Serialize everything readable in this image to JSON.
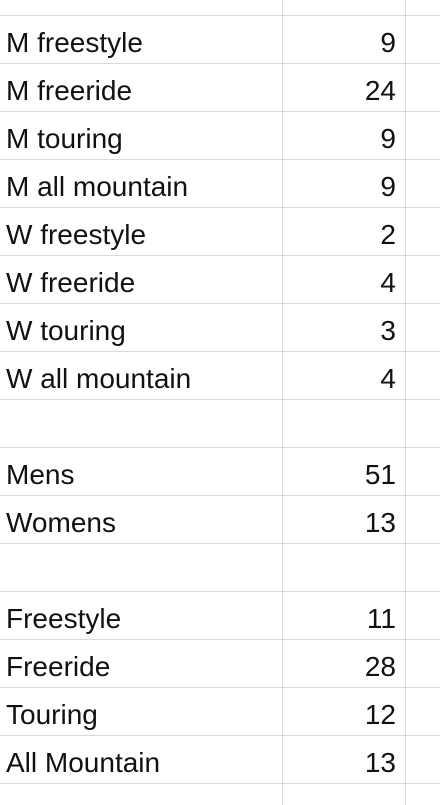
{
  "rows": [
    {
      "label": "M freestyle",
      "value": "9"
    },
    {
      "label": "M freeride",
      "value": "24"
    },
    {
      "label": "M touring",
      "value": "9"
    },
    {
      "label": "M all mountain",
      "value": "9"
    },
    {
      "label": "W freestyle",
      "value": "2"
    },
    {
      "label": "W freeride",
      "value": "4"
    },
    {
      "label": "W touring",
      "value": "3"
    },
    {
      "label": "W all mountain",
      "value": "4"
    },
    {
      "label": "",
      "value": ""
    },
    {
      "label": "Mens",
      "value": "51"
    },
    {
      "label": "Womens",
      "value": "13"
    },
    {
      "label": "",
      "value": ""
    },
    {
      "label": "Freestyle",
      "value": "11"
    },
    {
      "label": "Freeride",
      "value": "28"
    },
    {
      "label": "Touring",
      "value": "12"
    },
    {
      "label": "All Mountain",
      "value": "13"
    }
  ]
}
